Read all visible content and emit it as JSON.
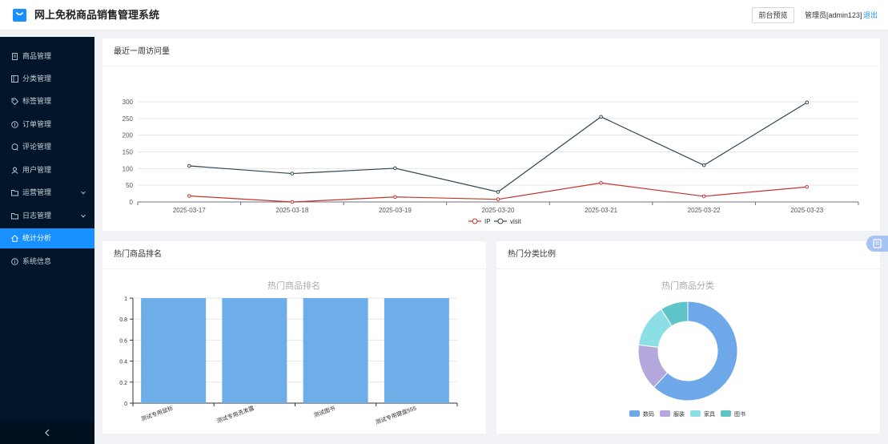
{
  "header": {
    "title": "网上免税商品销售管理系统",
    "preview_label": "前台预览",
    "user_label": "管理员[admin123]",
    "logout_label": "退出"
  },
  "sidebar": {
    "items": [
      {
        "label": "商品管理",
        "icon": "document-icon"
      },
      {
        "label": "分类管理",
        "icon": "list-icon"
      },
      {
        "label": "标签管理",
        "icon": "tag-icon"
      },
      {
        "label": "订单管理",
        "icon": "order-icon"
      },
      {
        "label": "评论管理",
        "icon": "comment-icon"
      },
      {
        "label": "用户管理",
        "icon": "user-icon"
      },
      {
        "label": "运营管理",
        "icon": "folder-icon",
        "expandable": true
      },
      {
        "label": "日志管理",
        "icon": "folder-icon",
        "expandable": true
      },
      {
        "label": "统计分析",
        "icon": "home-icon",
        "active": true
      },
      {
        "label": "系统信息",
        "icon": "info-icon"
      }
    ]
  },
  "cards": {
    "visits_title": "最近一周访问量",
    "ranking_title": "热门商品排名",
    "category_title": "热门分类比例"
  },
  "colors": {
    "accent": "#1890ff",
    "sidebar_bg": "#001529",
    "ip_line": "#c23531",
    "visit_line": "#2f4554",
    "bar": "#6eaee8"
  },
  "chart_data": [
    {
      "type": "line",
      "x": [
        "2025-03-17",
        "2025-03-18",
        "2025-03-19",
        "2025-03-20",
        "2025-03-21",
        "2025-03-22",
        "2025-03-23"
      ],
      "series": [
        {
          "name": "IP",
          "values": [
            18,
            0,
            15,
            8,
            57,
            17,
            45
          ],
          "color": "#c23531"
        },
        {
          "name": "visit",
          "values": [
            108,
            85,
            101,
            30,
            255,
            110,
            298
          ],
          "color": "#2f4554"
        }
      ],
      "yticks": [
        0,
        50,
        100,
        150,
        200,
        250,
        300
      ],
      "ylim": [
        0,
        300
      ],
      "grid": true,
      "legend": "bottom-center"
    },
    {
      "type": "bar",
      "title": "热门商品排名",
      "categories": [
        "测试专用鼠标",
        "测试专用洗发露",
        "测试图书",
        "测试专用键盘555"
      ],
      "values": [
        1,
        1,
        1,
        1
      ],
      "yticks": [
        "0",
        "0.2",
        "0.4",
        "0.6",
        "0.8",
        "1"
      ],
      "ylim": [
        0,
        1
      ],
      "color": "#6eaee8"
    },
    {
      "type": "pie",
      "title": "热门商品分类",
      "donut": true,
      "slices": [
        {
          "name": "数码",
          "value": 62,
          "color": "#6ea8e8"
        },
        {
          "name": "服装",
          "value": 15,
          "color": "#b4a7dc"
        },
        {
          "name": "家具",
          "value": 14,
          "color": "#8ddfe6"
        },
        {
          "name": "图书",
          "value": 9,
          "color": "#5ec4c8"
        }
      ],
      "legend": "bottom-center"
    }
  ]
}
